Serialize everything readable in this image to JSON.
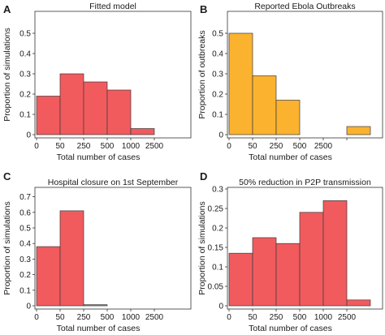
{
  "panels": [
    {
      "letter": "A"
    },
    {
      "letter": "B"
    },
    {
      "letter": "C"
    },
    {
      "letter": "D"
    }
  ],
  "chart_data": [
    {
      "type": "bar",
      "title": "Fitted model",
      "xlabel": "Total number of cases",
      "ylabel": "Proportion of simulations",
      "categories": [
        "0-50",
        "50-250",
        "250-500",
        "500-1000",
        "1000-2500",
        "2500+"
      ],
      "x_tick_labels": [
        "0",
        "50",
        "250",
        "500",
        "1000",
        "2500"
      ],
      "values": [
        0.19,
        0.3,
        0.26,
        0.22,
        0.03,
        0
      ],
      "y_tick_labels": [
        "0",
        "0.1",
        "0.2",
        "0.3",
        "0.4",
        "0.5"
      ],
      "ylim": [
        0,
        0.6
      ],
      "color": "#f15b5e",
      "grid": false
    },
    {
      "type": "bar",
      "title": "Reported Ebola Outbreaks",
      "xlabel": "Total number of cases",
      "ylabel": "Proportion of outbreaks",
      "categories": [
        "0-50",
        "50-250",
        "250-500",
        "500-1000",
        "1000-2500",
        "2500+"
      ],
      "x_tick_labels": [
        "0",
        "50",
        "250",
        "500",
        "2500",
        ""
      ],
      "values": [
        0.5,
        0.29,
        0.17,
        0,
        0,
        0.04
      ],
      "y_tick_labels": [
        "0",
        "0.1",
        "0.2",
        "0.3",
        "0.4",
        "0.5"
      ],
      "ylim": [
        0,
        0.6
      ],
      "color": "#fbb22e",
      "grid": false
    },
    {
      "type": "bar",
      "title": "Hospital closure on 1st September",
      "xlabel": "Total number of cases",
      "ylabel": "Proportion of simulations",
      "categories": [
        "0-50",
        "50-250",
        "250-500",
        "500-1000",
        "1000-2500",
        "2500+"
      ],
      "x_tick_labels": [
        "0",
        "50",
        "250",
        "500",
        "1000",
        "2500"
      ],
      "values": [
        0.38,
        0.61,
        0.007,
        0,
        0,
        0
      ],
      "y_tick_labels": [
        "0",
        "0.1",
        "0.2",
        "0.3",
        "0.4",
        "0.5",
        "0.6",
        "0.7"
      ],
      "ylim": [
        0,
        0.75
      ],
      "color": "#f15b5e",
      "grid": false
    },
    {
      "type": "bar",
      "title": "50% reduction in P2P transmission",
      "xlabel": "Total number of cases",
      "ylabel": "Proportion of simulations",
      "categories": [
        "0-50",
        "50-250",
        "250-500",
        "500-1000",
        "1000-2500",
        "2500+"
      ],
      "x_tick_labels": [
        "0",
        "50",
        "250",
        "500",
        "1000",
        "2500"
      ],
      "values": [
        0.135,
        0.175,
        0.16,
        0.24,
        0.27,
        0.015
      ],
      "y_tick_labels": [
        "0",
        "0.05",
        "0.1",
        "0.15",
        "0.2",
        "0.25",
        "0.3"
      ],
      "ylim": [
        0,
        0.3
      ],
      "color": "#f15b5e",
      "grid": false
    }
  ]
}
